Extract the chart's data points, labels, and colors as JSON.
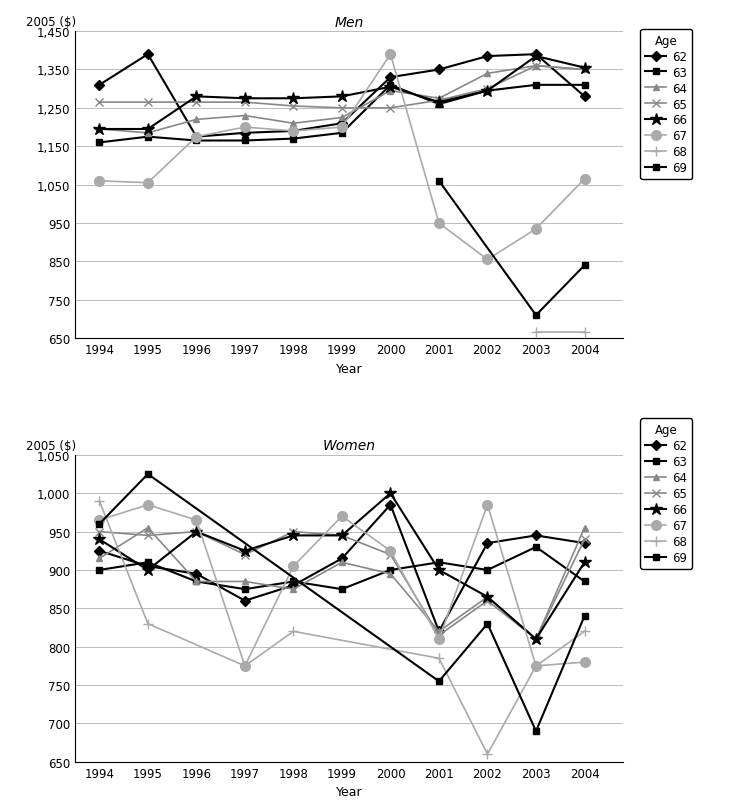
{
  "years": [
    1994,
    1995,
    1996,
    1997,
    1998,
    1999,
    2000,
    2001,
    2002,
    2003,
    2004
  ],
  "men": {
    "62": [
      1310,
      1390,
      1175,
      1185,
      1190,
      1210,
      1330,
      1350,
      1385,
      1390,
      1280
    ],
    "63": [
      1160,
      1175,
      1165,
      1165,
      1170,
      1185,
      1310,
      1260,
      1295,
      1310,
      1310
    ],
    "64": [
      1195,
      1185,
      1220,
      1230,
      1210,
      1225,
      1295,
      1275,
      1340,
      1360,
      1350
    ],
    "65": [
      1265,
      1265,
      1265,
      1265,
      1255,
      1250,
      1250,
      1270,
      1300,
      1360,
      1350
    ],
    "66": [
      1195,
      1195,
      1280,
      1275,
      1275,
      1280,
      1305,
      1265,
      1295,
      1385,
      1355
    ],
    "67": [
      1060,
      1055,
      1175,
      1200,
      1190,
      1200,
      1390,
      950,
      855,
      935,
      1065
    ],
    "68": [
      null,
      null,
      null,
      null,
      null,
      null,
      null,
      null,
      null,
      665,
      665
    ],
    "69": [
      null,
      null,
      null,
      null,
      null,
      null,
      null,
      1060,
      null,
      710,
      840
    ]
  },
  "women": {
    "62": [
      925,
      905,
      895,
      860,
      880,
      915,
      985,
      820,
      935,
      945,
      935
    ],
    "63": [
      900,
      910,
      885,
      875,
      885,
      875,
      900,
      910,
      900,
      930,
      885
    ],
    "64": [
      915,
      955,
      885,
      885,
      875,
      910,
      895,
      820,
      865,
      810,
      955
    ],
    "65": [
      950,
      945,
      950,
      920,
      950,
      945,
      920,
      815,
      860,
      810,
      940
    ],
    "66": [
      940,
      900,
      950,
      925,
      945,
      945,
      1000,
      900,
      865,
      810,
      910
    ],
    "67": [
      965,
      985,
      965,
      775,
      905,
      970,
      925,
      810,
      985,
      775,
      780
    ],
    "68": [
      990,
      830,
      null,
      775,
      820,
      null,
      null,
      785,
      660,
      775,
      820
    ],
    "69": [
      960,
      1025,
      null,
      null,
      null,
      null,
      null,
      755,
      830,
      690,
      840
    ]
  },
  "ages": [
    "62",
    "63",
    "64",
    "65",
    "66",
    "67",
    "68",
    "69"
  ],
  "series_props": {
    "62": {
      "color": "#000000",
      "marker": "D",
      "ms": 5,
      "lw": 1.5,
      "mfc": "#000000"
    },
    "63": {
      "color": "#000000",
      "marker": "s",
      "ms": 5,
      "lw": 1.5,
      "mfc": "#000000"
    },
    "64": {
      "color": "#888888",
      "marker": "^",
      "ms": 5,
      "lw": 1.2,
      "mfc": "#888888"
    },
    "65": {
      "color": "#888888",
      "marker": "x",
      "ms": 6,
      "lw": 1.2,
      "mfc": "#888888"
    },
    "66": {
      "color": "#000000",
      "marker": "*",
      "ms": 9,
      "lw": 1.5,
      "mfc": "#000000"
    },
    "67": {
      "color": "#aaaaaa",
      "marker": "o",
      "ms": 7,
      "lw": 1.2,
      "mfc": "#aaaaaa"
    },
    "68": {
      "color": "#aaaaaa",
      "marker": "+",
      "ms": 7,
      "lw": 1.2,
      "mfc": "#aaaaaa"
    },
    "69": {
      "color": "#000000",
      "marker": "s",
      "ms": 4,
      "lw": 1.5,
      "mfc": "#000000"
    }
  },
  "men_ylim": [
    650,
    1450
  ],
  "men_yticks": [
    650,
    750,
    850,
    950,
    1050,
    1150,
    1250,
    1350,
    1450
  ],
  "women_ylim": [
    650,
    1050
  ],
  "women_yticks": [
    650,
    700,
    750,
    800,
    850,
    900,
    950,
    1000,
    1050
  ],
  "men_title": "Men",
  "women_title": "Women",
  "ylabel": "2005 ($)",
  "xlabel": "Year",
  "legend_title": "Age",
  "legend_labels": [
    "62",
    "63",
    "64",
    "65",
    "66",
    "67",
    "68",
    "69"
  ]
}
